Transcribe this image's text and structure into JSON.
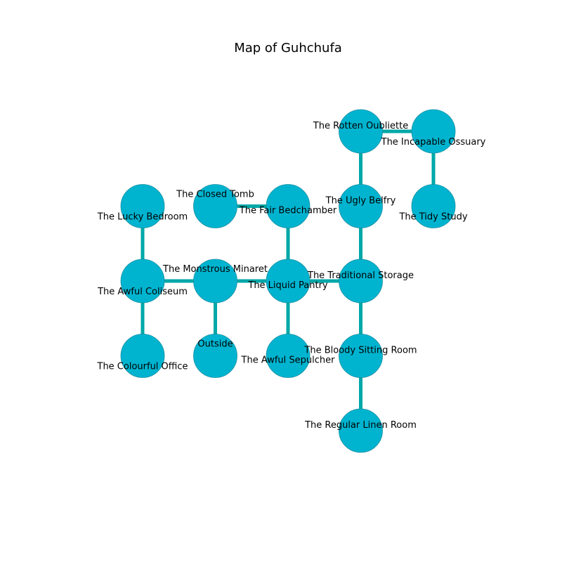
{
  "title": "Map of Guhchufa",
  "colors": {
    "node_fill": "#00b4d0",
    "node_stroke": "#1a8fa0",
    "edge": "#00a8a8"
  },
  "rooms": [
    {
      "id": "rotten-oubliette",
      "name": "The Rotten Oubliette",
      "col": 3,
      "row": 0
    },
    {
      "id": "incapable-ossuary",
      "name": "The Incapable Ossuary",
      "col": 4,
      "row": 0
    },
    {
      "id": "lucky-bedroom",
      "name": "The Lucky Bedroom",
      "col": 0,
      "row": 1
    },
    {
      "id": "closed-tomb",
      "name": "The Closed Tomb",
      "col": 1,
      "row": 1
    },
    {
      "id": "fair-bedchamber",
      "name": "The Fair Bedchamber",
      "col": 2,
      "row": 1
    },
    {
      "id": "ugly-belfry",
      "name": "The Ugly Belfry",
      "col": 3,
      "row": 1
    },
    {
      "id": "tidy-study",
      "name": "The Tidy Study",
      "col": 4,
      "row": 1
    },
    {
      "id": "awful-coliseum",
      "name": "The Awful Coliseum",
      "col": 0,
      "row": 2
    },
    {
      "id": "monstrous-minaret",
      "name": "The Monstrous Minaret",
      "col": 1,
      "row": 2
    },
    {
      "id": "liquid-pantry",
      "name": "The Liquid Pantry",
      "col": 2,
      "row": 2
    },
    {
      "id": "traditional-storage",
      "name": "The Traditional Storage",
      "col": 3,
      "row": 2
    },
    {
      "id": "colourful-office",
      "name": "The Colourful Office",
      "col": 0,
      "row": 3
    },
    {
      "id": "outside",
      "name": "Outside",
      "col": 1,
      "row": 3
    },
    {
      "id": "awful-sepulcher",
      "name": "The Awful Sepulcher",
      "col": 2,
      "row": 3
    },
    {
      "id": "bloody-sitting-room",
      "name": "The Bloody Sitting Room",
      "col": 3,
      "row": 3
    },
    {
      "id": "regular-linen-room",
      "name": "The Regular Linen Room",
      "col": 3,
      "row": 4
    }
  ],
  "connections": [
    [
      "rotten-oubliette",
      "incapable-ossuary"
    ],
    [
      "rotten-oubliette",
      "ugly-belfry"
    ],
    [
      "incapable-ossuary",
      "tidy-study"
    ],
    [
      "closed-tomb",
      "fair-bedchamber"
    ],
    [
      "fair-bedchamber",
      "liquid-pantry"
    ],
    [
      "ugly-belfry",
      "traditional-storage"
    ],
    [
      "lucky-bedroom",
      "awful-coliseum"
    ],
    [
      "awful-coliseum",
      "monstrous-minaret"
    ],
    [
      "awful-coliseum",
      "colourful-office"
    ],
    [
      "monstrous-minaret",
      "liquid-pantry"
    ],
    [
      "monstrous-minaret",
      "outside"
    ],
    [
      "liquid-pantry",
      "traditional-storage"
    ],
    [
      "liquid-pantry",
      "awful-sepulcher"
    ],
    [
      "traditional-storage",
      "bloody-sitting-room"
    ],
    [
      "bloody-sitting-room",
      "regular-linen-room"
    ]
  ]
}
